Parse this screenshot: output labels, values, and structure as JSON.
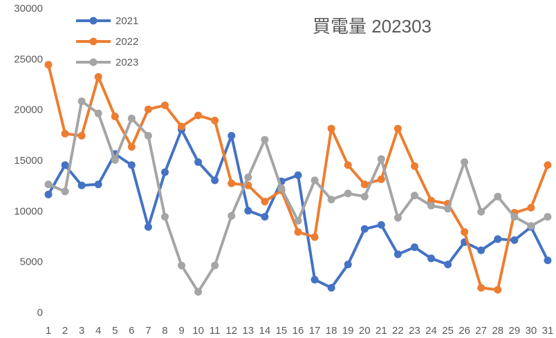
{
  "chart_data": {
    "type": "line",
    "title": "買電量 202303",
    "categories": [
      1,
      2,
      3,
      4,
      5,
      6,
      7,
      8,
      9,
      10,
      11,
      12,
      13,
      14,
      15,
      16,
      17,
      18,
      19,
      20,
      21,
      22,
      23,
      24,
      25,
      26,
      27,
      28,
      29,
      30,
      31
    ],
    "series": [
      {
        "name": "2021",
        "color": "#4472c4",
        "values": [
          11700,
          14600,
          12600,
          12700,
          15700,
          14600,
          8500,
          13900,
          18100,
          14900,
          13100,
          17500,
          10100,
          9500,
          13000,
          13600,
          3300,
          2500,
          4800,
          8300,
          8700,
          5800,
          6500,
          5400,
          4800,
          7000,
          6200,
          7300,
          7200,
          8500,
          5200
        ]
      },
      {
        "name": "2022",
        "color": "#ed7d31",
        "values": [
          24500,
          17700,
          17500,
          23300,
          19400,
          16400,
          20100,
          20500,
          18400,
          19500,
          19000,
          12800,
          12600,
          11000,
          12100,
          8000,
          7500,
          18200,
          14600,
          12700,
          13200,
          18200,
          14500,
          11100,
          10800,
          8000,
          2500,
          2300,
          9900,
          10400,
          14600
        ]
      },
      {
        "name": "2023",
        "color": "#a5a5a5",
        "values": [
          12700,
          12000,
          20900,
          19700,
          15100,
          19200,
          17500,
          9500,
          4700,
          2100,
          4700,
          9600,
          13400,
          17100,
          12300,
          9100,
          13100,
          11200,
          11800,
          11500,
          15200,
          9400,
          11600,
          10600,
          10300,
          14900,
          10000,
          11500,
          9500,
          8600,
          9500
        ]
      }
    ],
    "ylim": [
      0,
      30000
    ],
    "yticks": [
      0,
      5000,
      10000,
      15000,
      20000,
      25000,
      30000
    ],
    "grid": false
  }
}
